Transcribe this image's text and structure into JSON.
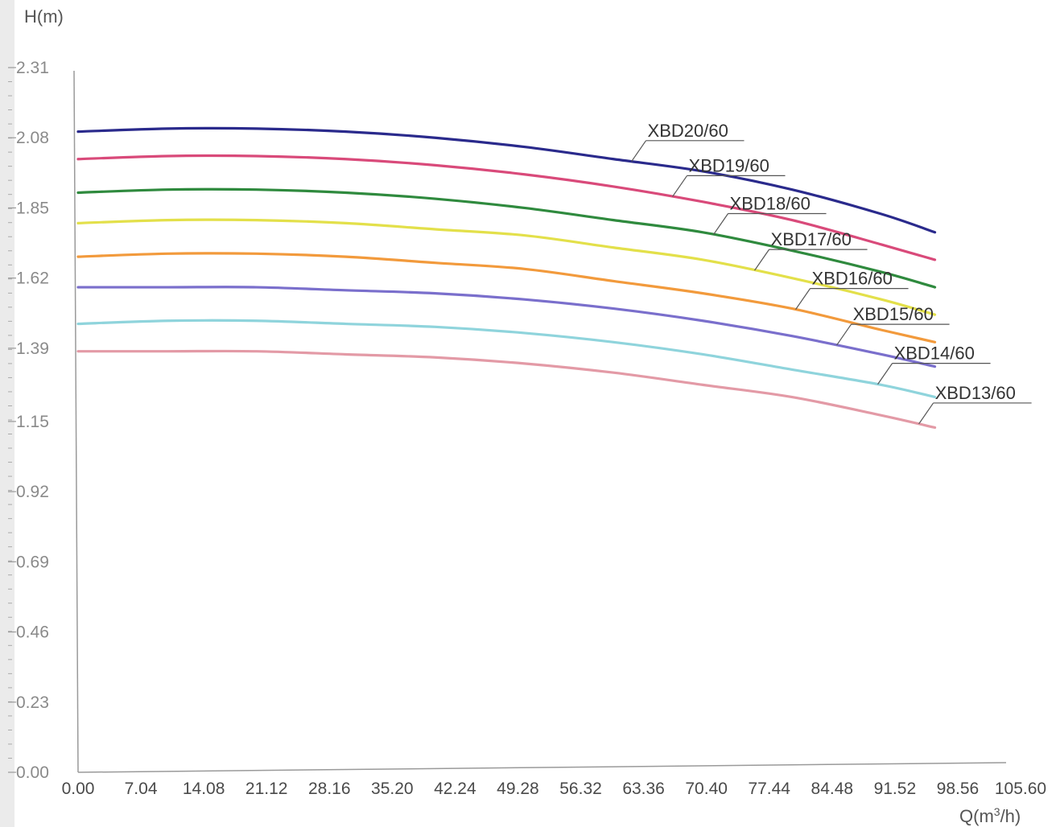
{
  "chart_data": {
    "type": "line",
    "ylabel": "H(m)",
    "xlabel_prefix": "Q(m",
    "xlabel_sup": "3",
    "xlabel_suffix": "/h)",
    "xlim": [
      0,
      105.6
    ],
    "ylim": [
      0,
      2.31
    ],
    "x_ticks": [
      "0.00",
      "7.04",
      "14.08",
      "21.12",
      "28.16",
      "35.20",
      "42.24",
      "49.28",
      "56.32",
      "63.36",
      "70.40",
      "77.44",
      "84.48",
      "91.52",
      "98.56",
      "105.60"
    ],
    "y_ticks": [
      "0.00",
      "0.23",
      "0.46",
      "0.69",
      "0.92",
      "1.15",
      "1.39",
      "1.62",
      "1.85",
      "2.08",
      "2.31"
    ],
    "grid": false,
    "legend": "inline labels near line ends",
    "series": [
      {
        "name": "XBD20/60",
        "color": "#2a2a8c",
        "x": [
          0,
          10,
          20,
          30,
          40,
          50,
          60,
          70,
          80,
          90,
          96
        ],
        "y": [
          2.1,
          2.11,
          2.11,
          2.1,
          2.08,
          2.05,
          2.01,
          1.97,
          1.91,
          1.83,
          1.77
        ]
      },
      {
        "name": "XBD19/60",
        "color": "#d94a7a",
        "x": [
          0,
          10,
          20,
          30,
          40,
          50,
          60,
          70,
          80,
          90,
          96
        ],
        "y": [
          2.01,
          2.02,
          2.02,
          2.01,
          1.99,
          1.96,
          1.92,
          1.87,
          1.81,
          1.73,
          1.68
        ]
      },
      {
        "name": "XBD18/60",
        "color": "#2f8a3e",
        "x": [
          0,
          10,
          20,
          30,
          40,
          50,
          60,
          70,
          80,
          90,
          96
        ],
        "y": [
          1.9,
          1.91,
          1.91,
          1.9,
          1.88,
          1.85,
          1.81,
          1.77,
          1.71,
          1.64,
          1.59
        ]
      },
      {
        "name": "XBD17/60",
        "color": "#e3e04a",
        "x": [
          0,
          10,
          20,
          30,
          40,
          50,
          60,
          70,
          80,
          90,
          96
        ],
        "y": [
          1.8,
          1.81,
          1.81,
          1.8,
          1.78,
          1.76,
          1.72,
          1.68,
          1.62,
          1.55,
          1.5
        ]
      },
      {
        "name": "XBD16/60",
        "color": "#f29a3c",
        "x": [
          0,
          10,
          20,
          30,
          40,
          50,
          60,
          70,
          80,
          90,
          96
        ],
        "y": [
          1.69,
          1.7,
          1.7,
          1.69,
          1.67,
          1.65,
          1.61,
          1.57,
          1.52,
          1.45,
          1.41
        ]
      },
      {
        "name": "XBD15/60",
        "color": "#7a6fcc",
        "x": [
          0,
          10,
          20,
          30,
          40,
          50,
          60,
          70,
          80,
          90,
          96
        ],
        "y": [
          1.59,
          1.59,
          1.59,
          1.58,
          1.57,
          1.55,
          1.52,
          1.48,
          1.43,
          1.37,
          1.33
        ]
      },
      {
        "name": "XBD14/60",
        "color": "#8fd4dc",
        "x": [
          0,
          10,
          20,
          30,
          40,
          50,
          60,
          70,
          80,
          90,
          96
        ],
        "y": [
          1.47,
          1.48,
          1.48,
          1.47,
          1.46,
          1.44,
          1.41,
          1.37,
          1.32,
          1.27,
          1.23
        ]
      },
      {
        "name": "XBD13/60",
        "color": "#e39aa6",
        "x": [
          0,
          10,
          20,
          30,
          40,
          50,
          60,
          70,
          80,
          90,
          96
        ],
        "y": [
          1.38,
          1.38,
          1.38,
          1.37,
          1.36,
          1.34,
          1.31,
          1.27,
          1.23,
          1.17,
          1.13
        ]
      }
    ]
  }
}
